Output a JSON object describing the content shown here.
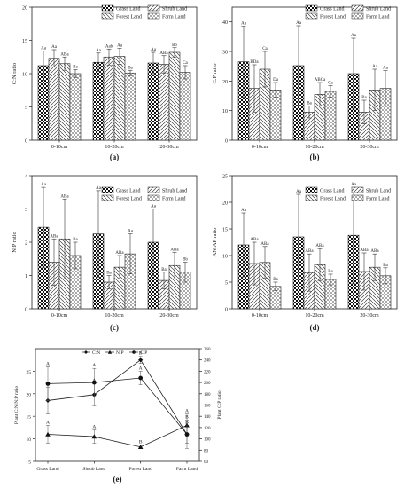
{
  "charts": [
    {
      "panel": "(a)",
      "type": "bar",
      "ylabel": "C:N ratio",
      "ylim": [
        0,
        20
      ],
      "yticks": [
        0,
        5,
        10,
        15,
        20
      ],
      "categories": [
        "0-10cm",
        "10-20cm",
        "20-30cm"
      ],
      "legend": [
        "Grass Land",
        "Shrub Land",
        "Forest Land",
        "Farm Land"
      ],
      "series": [
        {
          "name": "Grass Land",
          "values": [
            11.2,
            11.7,
            11.6
          ],
          "err": [
            2.2,
            1.4,
            1.6
          ],
          "labels": [
            "Aa",
            "Aa",
            "Aa"
          ]
        },
        {
          "name": "Shrub Land",
          "values": [
            12.3,
            12.5,
            11.4
          ],
          "err": [
            1.3,
            1.2,
            1.3
          ],
          "labels": [
            "Aa",
            "Aab",
            "ABa"
          ]
        },
        {
          "name": "Forest Land",
          "values": [
            11.5,
            12.6,
            13.2
          ],
          "err": [
            1.0,
            1.2,
            0.7
          ],
          "labels": [
            "ABa",
            "Aa",
            "Bb"
          ]
        },
        {
          "name": "Farm Land",
          "values": [
            10.0,
            10.1,
            10.2
          ],
          "err": [
            0.6,
            0.4,
            1.0
          ],
          "labels": [
            "Ba",
            "Ba",
            "Ca"
          ]
        }
      ]
    },
    {
      "panel": "(b)",
      "type": "bar",
      "ylabel": "C:P ratio",
      "ylim": [
        0,
        45
      ],
      "yticks": [
        0,
        10,
        20,
        30,
        40
      ],
      "categories": [
        "0-10cm",
        "10-20cm",
        "20-30cm"
      ],
      "legend": [
        "Grass Land",
        "Shrub Land",
        "Forest Land",
        "Farm Land"
      ],
      "series": [
        {
          "name": "Grass Land",
          "values": [
            26.5,
            25.2,
            22.5
          ],
          "err": [
            12.0,
            13.5,
            12.0
          ],
          "labels": [
            "Aa",
            "Aa",
            "Aa"
          ]
        },
        {
          "name": "Shrub Land",
          "values": [
            17.5,
            9.5,
            9.5
          ],
          "err": [
            8.0,
            2.0,
            4.0
          ],
          "labels": [
            "BDa",
            "Ba",
            "Ba"
          ]
        },
        {
          "name": "Forest Land",
          "values": [
            24.0,
            15.5,
            17.0
          ],
          "err": [
            6.0,
            4.0,
            7.0
          ],
          "labels": [
            "Ca",
            "ABCa",
            "Aa"
          ]
        },
        {
          "name": "Farm Land",
          "values": [
            17.0,
            16.5,
            17.5
          ],
          "err": [
            2.5,
            2.0,
            6.0
          ],
          "labels": [
            "Da",
            "Ca",
            "Aa"
          ]
        }
      ]
    },
    {
      "panel": "(c)",
      "type": "bar",
      "ylabel": "N:P ratio",
      "ylim": [
        0,
        4
      ],
      "yticks": [
        0,
        1,
        2,
        3,
        4
      ],
      "categories": [
        "0-10cm",
        "10-20cm",
        "20-30cm"
      ],
      "legend": [
        "Grass Land",
        "Shrub Land",
        "Forest Land",
        "Farm Land"
      ],
      "series": [
        {
          "name": "Grass Land",
          "values": [
            2.45,
            2.25,
            2.0
          ],
          "err": [
            1.2,
            1.3,
            1.0
          ],
          "labels": [
            "Aa",
            "Aa",
            "Aa"
          ]
        },
        {
          "name": "Shrub Land",
          "values": [
            1.4,
            0.8,
            0.85
          ],
          "err": [
            0.7,
            0.2,
            0.25
          ],
          "labels": [
            "ABa",
            "Ba",
            "Ba"
          ]
        },
        {
          "name": "Forest Land",
          "values": [
            2.1,
            1.25,
            1.3
          ],
          "err": [
            1.2,
            0.35,
            0.4
          ],
          "labels": [
            "ABa",
            "ABa",
            "ABa"
          ]
        },
        {
          "name": "Farm Land",
          "values": [
            1.6,
            1.65,
            1.1
          ],
          "err": [
            0.4,
            0.6,
            0.3
          ],
          "labels": [
            "Ba",
            "Aa",
            "Bb"
          ]
        }
      ]
    },
    {
      "panel": "(d)",
      "type": "bar",
      "ylabel": "AN:AP ratio",
      "ylim": [
        0,
        25
      ],
      "yticks": [
        0,
        5,
        10,
        15,
        20,
        25
      ],
      "categories": [
        "0-10cm",
        "10-20cm",
        "20-30cm"
      ],
      "legend": [
        "Grass Land",
        "Shrub Land",
        "Forest Land",
        "Farm Land"
      ],
      "series": [
        {
          "name": "Grass Land",
          "values": [
            12.0,
            13.5,
            13.8
          ],
          "err": [
            6.0,
            8.0,
            9.0
          ],
          "labels": [
            "Aa",
            "Aa",
            "Aa"
          ]
        },
        {
          "name": "Shrub Land",
          "values": [
            8.5,
            6.8,
            7.0
          ],
          "err": [
            4.0,
            3.5,
            3.5
          ],
          "labels": [
            "ABa",
            "ABa",
            "ABa"
          ]
        },
        {
          "name": "Forest Land",
          "values": [
            8.7,
            8.3,
            7.8
          ],
          "err": [
            3.0,
            3.0,
            2.5
          ],
          "labels": [
            "ABa",
            "ABa",
            "ABa"
          ]
        },
        {
          "name": "Farm Land",
          "values": [
            4.2,
            5.5,
            6.2
          ],
          "err": [
            0.8,
            1.0,
            1.5
          ],
          "labels": [
            "Ba",
            "Ba",
            "Ba"
          ]
        }
      ]
    },
    {
      "panel": "(e)",
      "type": "line",
      "categories": [
        "Grass Land",
        "Shrub Land",
        "Forest Land",
        "Farm Land"
      ],
      "ylabel_left": "Plant C:N\\N:P ratio",
      "ylabel_right": "Plant C:P ratio",
      "ylim_left": [
        5,
        30
      ],
      "yticks_left": [
        5,
        10,
        15,
        20,
        25
      ],
      "ylim_right": [
        60,
        260
      ],
      "yticks_right": [
        60,
        80,
        100,
        120,
        140,
        160,
        180,
        200,
        220,
        240,
        260
      ],
      "legend": [
        "C:N",
        "N:P",
        "C:P"
      ],
      "series": [
        {
          "name": "C:N",
          "axis": "left",
          "marker": "diamond",
          "values": [
            18.5,
            19.8,
            27.5,
            11.0
          ],
          "err": [
            3.0,
            2.5,
            0.8,
            2.0
          ],
          "labels": [
            "A",
            "A",
            "B",
            "B"
          ]
        },
        {
          "name": "N:P",
          "axis": "left",
          "marker": "triangle",
          "values": [
            11.0,
            10.5,
            8.2,
            13.0
          ],
          "err": [
            2.0,
            1.5,
            0.4,
            2.5
          ],
          "labels": [
            "A",
            "A",
            "B",
            "A"
          ]
        },
        {
          "name": "C:P",
          "axis": "right",
          "marker": "circle",
          "values": [
            198,
            200,
            208,
            108
          ],
          "err": [
            30,
            25,
            12,
            25
          ],
          "labels": [
            "A",
            "A",
            "A",
            "B"
          ]
        }
      ]
    }
  ]
}
